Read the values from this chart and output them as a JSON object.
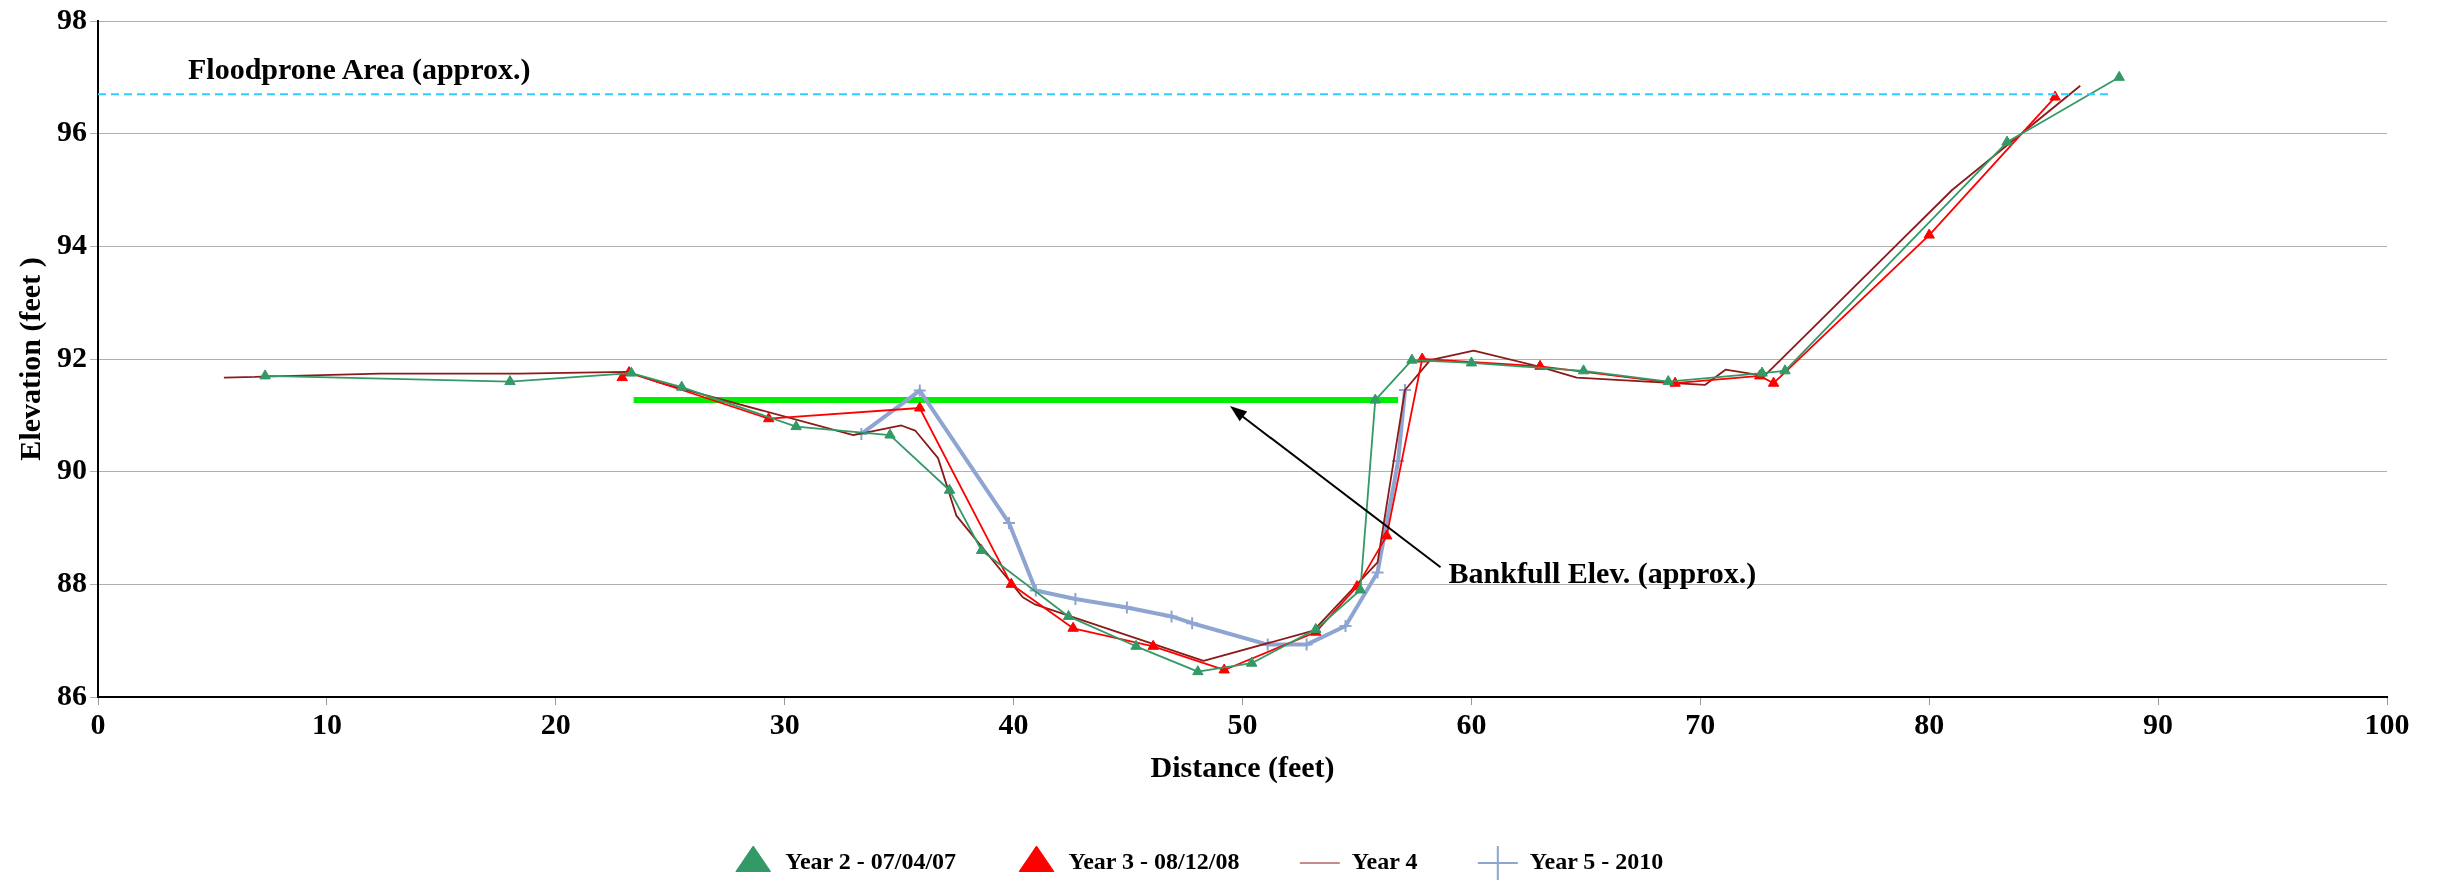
{
  "chart_data": {
    "type": "line",
    "xlabel": "Distance (feet)",
    "ylabel": "Elevation (feet )",
    "xlim": [
      0,
      100
    ],
    "xticks": [
      0,
      10,
      20,
      30,
      40,
      50,
      60,
      70,
      80,
      90,
      100
    ],
    "ylim": [
      86,
      98
    ],
    "yticks": [
      86,
      88,
      90,
      92,
      94,
      96,
      98
    ],
    "grid": "y",
    "legend": "bottom",
    "series": [
      {
        "name": "Year 2 - 07/04/07",
        "color": "#339966",
        "marker": "triangle",
        "x": [
          7.3,
          18.0,
          23.3,
          25.5,
          30.5,
          34.6,
          37.2,
          38.6,
          42.4,
          45.35,
          48.05,
          50.4,
          53.2,
          55.15,
          55.8,
          57.4,
          60.0,
          64.9,
          68.6,
          72.7,
          73.7,
          83.4,
          88.3
        ],
        "values": [
          91.7,
          91.6,
          91.75,
          91.5,
          90.8,
          90.65,
          89.67,
          88.6,
          87.43,
          86.9,
          86.45,
          86.6,
          87.2,
          87.9,
          91.27,
          91.98,
          91.93,
          91.79,
          91.6,
          91.75,
          91.79,
          95.85,
          97.0
        ]
      },
      {
        "name": "Year 3 - 08/12/08",
        "color": "#ff0000",
        "marker": "triangle",
        "x": [
          22.9,
          23.2,
          29.3,
          35.9,
          39.9,
          42.6,
          46.1,
          49.2,
          53.2,
          55.0,
          56.3,
          57.85,
          63.0,
          68.9,
          72.6,
          73.2,
          80.0,
          85.5
        ],
        "values": [
          91.67,
          91.76,
          90.94,
          91.13,
          88.0,
          87.22,
          86.9,
          86.48,
          87.15,
          87.96,
          88.86,
          92.0,
          91.87,
          91.57,
          91.7,
          91.57,
          94.2,
          96.65
        ]
      },
      {
        "name": "Year 4",
        "color": "#8b1a1a",
        "marker": "none",
        "x": [
          5.5,
          12.3,
          18.4,
          23.1,
          24.6,
          33.0,
          35.1,
          35.7,
          36.7,
          37.5,
          40.4,
          40.9,
          48.3,
          53.1,
          55.9,
          57.1,
          58.2,
          60.1,
          63.0,
          64.6,
          70.2,
          71.1,
          72.8,
          81.0,
          86.6
        ],
        "values": [
          91.67,
          91.74,
          91.74,
          91.77,
          91.57,
          90.65,
          90.82,
          90.73,
          90.24,
          89.22,
          87.77,
          87.65,
          86.64,
          87.18,
          88.39,
          91.45,
          91.98,
          92.15,
          91.86,
          91.67,
          91.54,
          91.81,
          91.7,
          95.0,
          96.85
        ]
      },
      {
        "name": "Year 5 - 2010",
        "color": "#8fa5d1",
        "marker": "cross",
        "x": [
          33.35,
          35.9,
          39.8,
          40.97,
          42.7,
          44.95,
          46.9,
          47.8,
          51.1,
          52.8,
          54.5,
          55.9,
          56.8,
          57.1
        ],
        "values": [
          90.67,
          91.44,
          89.09,
          87.89,
          87.74,
          87.59,
          87.43,
          87.31,
          86.93,
          86.93,
          87.26,
          88.21,
          90.19,
          91.45
        ]
      },
      {
        "color": "#00ee00",
        "marker": "none",
        "x": [
          23.4,
          56.8
        ],
        "values": [
          91.27,
          91.27
        ]
      }
    ],
    "ref_lines": [
      {
        "axis": "y",
        "value": 96.7,
        "label": "Floodprone Area (approx.)",
        "color": "#33ccff",
        "line_style": "dashed"
      }
    ],
    "annotations": [
      "Bankfull Elev. (approx.)"
    ]
  }
}
